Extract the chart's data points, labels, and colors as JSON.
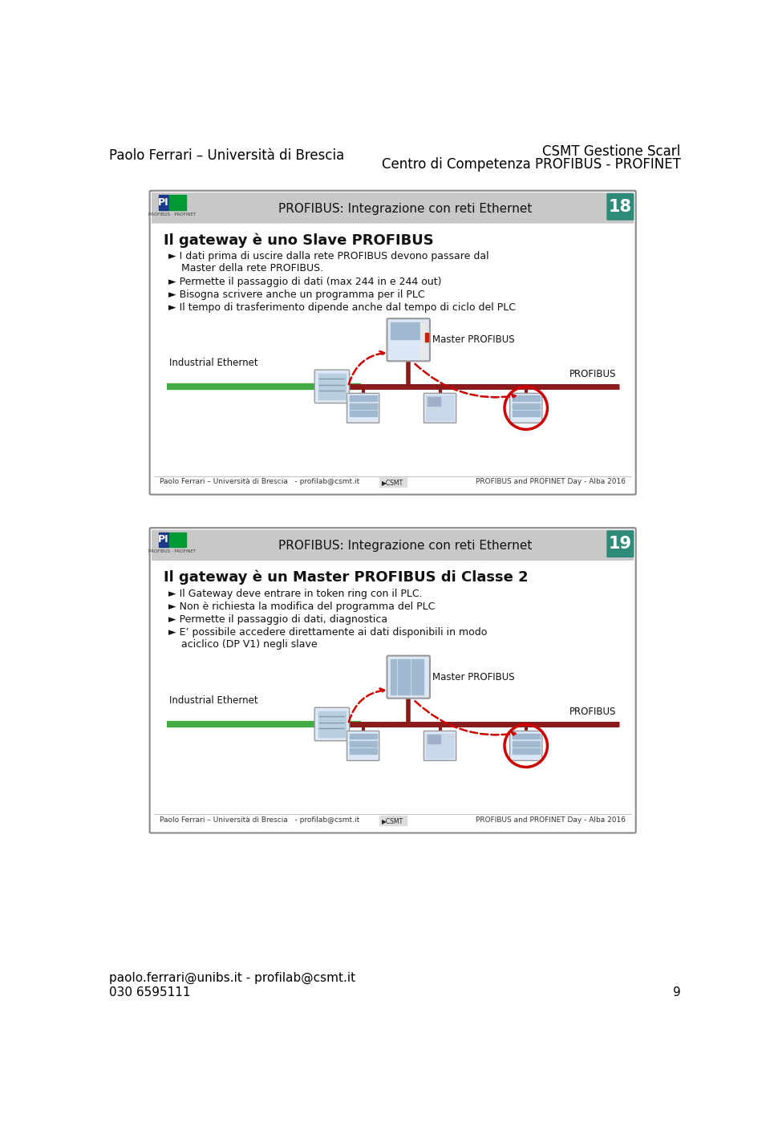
{
  "header_left": "Paolo Ferrari – Università di Brescia",
  "header_right_line1": "CSMT Gestione Scarl",
  "header_right_line2": "Centro di Competenza PROFIBUS - PROFINET",
  "slide1_number": "18",
  "slide2_number": "19",
  "slide_subtitle": "PROFIBUS: Integrazione con reti Ethernet",
  "slide1_title": "Il gateway è uno Slave PROFIBUS",
  "slide1_bullets": [
    "I dati prima di uscire dalla rete PROFIBUS devono passare dal\n    Master della rete PROFIBUS.",
    "Permette il passaggio di dati (max 244 in e 244 out)",
    "Bisogna scrivere anche un programma per il PLC",
    "Il tempo di trasferimento dipende anche dal tempo di ciclo del PLC"
  ],
  "slide2_title": "Il gateway è un Master PROFIBUS di Classe 2",
  "slide2_bullets": [
    "Il Gateway deve entrare in token ring con il PLC.",
    "Non è richiesta la modifica del programma del PLC",
    "Permette il passaggio di dati, diagnostica",
    "E’ possibile accedere direttamente ai dati disponibili in modo\n    aciclico (DP V1) negli slave"
  ],
  "footer_email": "paolo.ferrari@unibs.it - profilab@csmt.it",
  "footer_phone": "030 6595111",
  "footer_page": "9",
  "footer_slide_left": "Paolo Ferrari – Università di Brescia   - profilab@csmt.it",
  "footer_slide_right": "PROFIBUS and PROFINET Day - Alba 2016",
  "slide_border": "#888888",
  "header_banner_bg": "#c8c8c8",
  "slide_number_bg": "#2e8b7a",
  "slide_number_color": "#ffffff",
  "label_industrial": "Industrial Ethernet",
  "label_master": "Master PROFIBUS",
  "label_profibus": "PROFIBUS",
  "ethernet_line_color": "#44aa44",
  "profibus_line_color": "#8b1a1a",
  "dashed_arrow_color": "#cc0000"
}
